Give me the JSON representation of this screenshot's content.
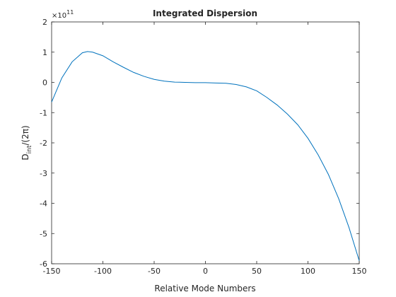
{
  "chart_data": {
    "type": "line",
    "title": "Integrated Dispersion",
    "xlabel": "Relative Mode Numbers",
    "ylabel": [
      "D",
      "int",
      "/(2π)"
    ],
    "y_exponent": [
      "×10",
      "11"
    ],
    "x": [
      -150,
      -140,
      -130,
      -120,
      -115,
      -110,
      -100,
      -90,
      -80,
      -70,
      -60,
      -50,
      -40,
      -30,
      -20,
      -10,
      0,
      10,
      20,
      30,
      40,
      50,
      60,
      70,
      80,
      90,
      100,
      110,
      120,
      130,
      140,
      150
    ],
    "series": [
      {
        "color": "#0072bd",
        "values": [
          -0.65,
          0.15,
          0.68,
          0.98,
          1.02,
          1.0,
          0.88,
          0.68,
          0.5,
          0.33,
          0.2,
          0.1,
          0.04,
          0.01,
          0.0,
          -0.01,
          -0.01,
          -0.02,
          -0.03,
          -0.07,
          -0.15,
          -0.28,
          -0.5,
          -0.75,
          -1.05,
          -1.4,
          -1.85,
          -2.4,
          -3.05,
          -3.85,
          -4.8,
          -5.9
        ]
      }
    ],
    "xlim": [
      -150,
      150
    ],
    "xticks": [
      -150,
      -100,
      -50,
      0,
      50,
      100,
      150
    ],
    "ylim": [
      -6,
      2
    ],
    "yticks": [
      -6,
      -5,
      -4,
      -3,
      -2,
      -1,
      0,
      1,
      2
    ]
  }
}
